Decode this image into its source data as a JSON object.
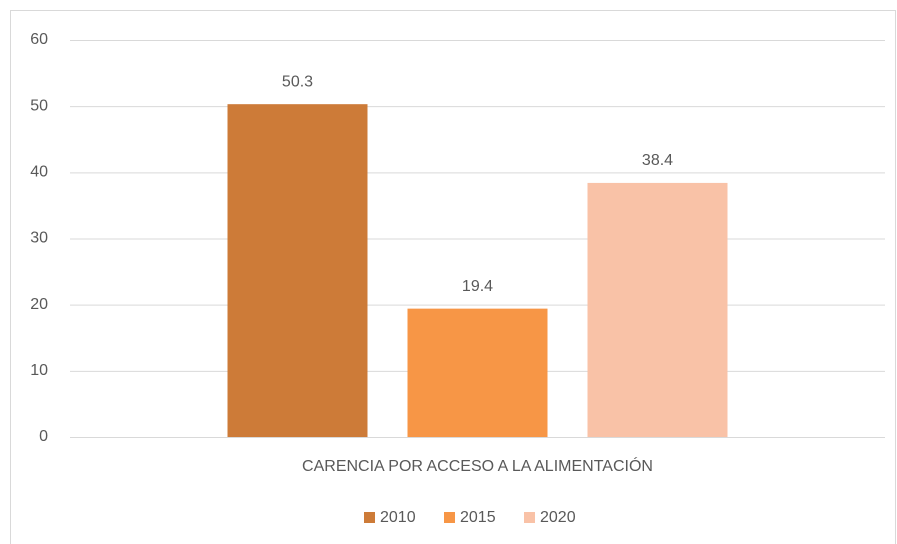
{
  "chart_data": {
    "type": "bar",
    "categories": [
      "CARENCIA POR ACCESO A LA ALIMENTACIÓN"
    ],
    "series": [
      {
        "name": "2010",
        "color": "#cd7b38",
        "values": [
          50.3
        ]
      },
      {
        "name": "2015",
        "color": "#f79646",
        "values": [
          19.4
        ]
      },
      {
        "name": "2020",
        "color": "#f9c2a7",
        "values": [
          38.4
        ]
      }
    ],
    "ylim": [
      0,
      60
    ],
    "yticks": [
      0,
      10,
      20,
      30,
      40,
      50,
      60
    ],
    "grid": true,
    "legend": "bottom"
  }
}
